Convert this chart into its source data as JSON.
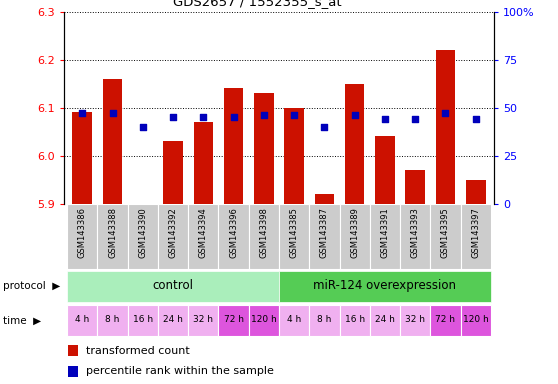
{
  "title": "GDS2657 / 1552355_s_at",
  "samples": [
    "GSM143386",
    "GSM143388",
    "GSM143390",
    "GSM143392",
    "GSM143394",
    "GSM143396",
    "GSM143398",
    "GSM143385",
    "GSM143387",
    "GSM143389",
    "GSM143391",
    "GSM143393",
    "GSM143395",
    "GSM143397"
  ],
  "transformed_counts": [
    6.09,
    6.16,
    5.9,
    6.03,
    6.07,
    6.14,
    6.13,
    6.1,
    5.92,
    6.15,
    6.04,
    5.97,
    6.22,
    5.95
  ],
  "percentile_ranks": [
    47,
    47,
    40,
    45,
    45,
    45,
    46,
    46,
    40,
    46,
    44,
    44,
    47,
    44
  ],
  "ylim_left": [
    5.9,
    6.3
  ],
  "ylim_right": [
    0,
    100
  ],
  "yticks_left": [
    5.9,
    6.0,
    6.1,
    6.2,
    6.3
  ],
  "yticks_right": [
    0,
    25,
    50,
    75,
    100
  ],
  "protocol_labels": [
    "control",
    "miR-124 overexpression"
  ],
  "time_labels": [
    "4 h",
    "8 h",
    "16 h",
    "24 h",
    "32 h",
    "72 h",
    "120 h",
    "4 h",
    "8 h",
    "16 h",
    "24 h",
    "32 h",
    "72 h",
    "120 h"
  ],
  "time_colors": [
    "#f0b0f0",
    "#f0b0f0",
    "#f0b0f0",
    "#f0b0f0",
    "#f0b0f0",
    "#dd55dd",
    "#dd55dd",
    "#f0b0f0",
    "#f0b0f0",
    "#f0b0f0",
    "#f0b0f0",
    "#f0b0f0",
    "#dd55dd",
    "#dd55dd"
  ],
  "bar_color": "#cc1100",
  "dot_color": "#0000bb",
  "control_color": "#aaeebb",
  "mirna_color": "#55cc55",
  "sample_bg_color": "#cccccc",
  "grid_color": "#000000",
  "bar_bottom": 5.9,
  "fig_width": 5.58,
  "fig_height": 3.84
}
